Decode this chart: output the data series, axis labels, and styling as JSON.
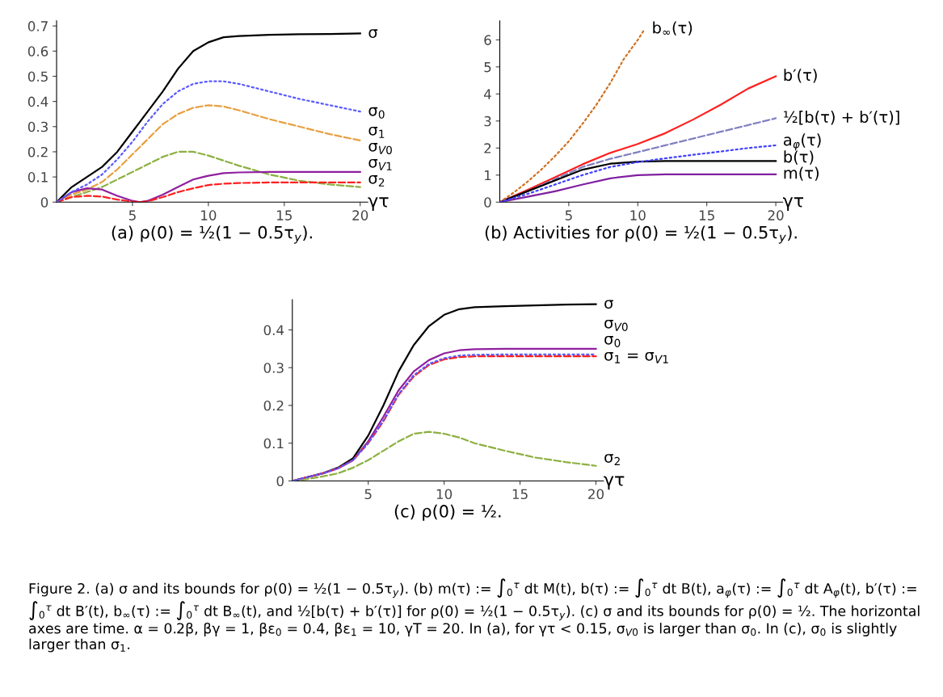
{
  "chart_data": [
    {
      "type": "line",
      "title": "(a) ρ(0) = ½(1 − 0.5τ$_{y}$).",
      "xlabel": "γτ",
      "x": [
        0,
        1,
        2,
        3,
        4,
        5,
        5.5,
        6,
        7,
        8,
        9,
        10,
        11,
        12,
        14,
        16,
        18,
        20
      ],
      "xlim": [
        0,
        20.5
      ],
      "ylim": [
        0,
        0.72
      ],
      "xticks": [
        5,
        10,
        15,
        20
      ],
      "yticks": [
        0,
        0.1,
        0.2,
        0.3,
        0.4,
        0.5,
        0.6,
        0.7
      ],
      "series": [
        {
          "name": "σ",
          "color": "#000000",
          "line_style": "solid",
          "values": [
            0,
            0.06,
            0.1,
            0.14,
            0.2,
            0.28,
            0.32,
            0.36,
            0.44,
            0.53,
            0.6,
            0.635,
            0.655,
            0.66,
            0.665,
            0.667,
            0.668,
            0.67
          ]
        },
        {
          "name": "σ$_{0}$",
          "color": "#5a5aff",
          "line_style": "dotted",
          "values": [
            0,
            0.04,
            0.07,
            0.11,
            0.17,
            0.24,
            0.28,
            0.32,
            0.39,
            0.44,
            0.47,
            0.48,
            0.48,
            0.47,
            0.44,
            0.41,
            0.385,
            0.36
          ]
        },
        {
          "name": "σ$_{1}$",
          "color": "#e8a040",
          "line_style": "dashed",
          "values": [
            0,
            0.03,
            0.05,
            0.08,
            0.13,
            0.19,
            0.22,
            0.25,
            0.31,
            0.35,
            0.375,
            0.385,
            0.38,
            0.365,
            0.33,
            0.3,
            0.27,
            0.245
          ]
        },
        {
          "name": "σ$_{2}$",
          "color": "#8cb040",
          "line_style": "dashed",
          "values": [
            0,
            0.02,
            0.04,
            0.06,
            0.09,
            0.12,
            0.135,
            0.15,
            0.18,
            0.2,
            0.2,
            0.185,
            0.165,
            0.145,
            0.11,
            0.085,
            0.07,
            0.06
          ]
        },
        {
          "name": "σ$_{V0}$",
          "color": "#9020a0",
          "line_style": "solid",
          "values": [
            0,
            0.04,
            0.055,
            0.05,
            0.025,
            0.005,
            0,
            0.005,
            0.03,
            0.06,
            0.09,
            0.105,
            0.115,
            0.118,
            0.12,
            0.12,
            0.12,
            0.12
          ]
        },
        {
          "name": "σ$_{V1}$",
          "color": "#ff2020",
          "line_style": "dashed",
          "values": [
            0,
            0.02,
            0.025,
            0.022,
            0.01,
            0.002,
            0,
            0.003,
            0.02,
            0.04,
            0.055,
            0.068,
            0.073,
            0.076,
            0.078,
            0.078,
            0.078,
            0.078
          ]
        }
      ]
    },
    {
      "type": "line",
      "title": "(b) Activities for ρ(0) = ½(1 − 0.5τ$_{y}$).",
      "xlabel": "γτ",
      "x": [
        0,
        2,
        4,
        6,
        8,
        10,
        12,
        14,
        16,
        18,
        20
      ],
      "xlim": [
        0,
        20.5
      ],
      "ylim": [
        0,
        6.7
      ],
      "xticks": [
        5,
        10,
        15,
        20
      ],
      "yticks": [
        0,
        1,
        2,
        3,
        4,
        5,
        6
      ],
      "series": [
        {
          "name": "b$_{∞}$(τ)",
          "color": "#d07020",
          "line_style": "dotted",
          "x": [
            0,
            1,
            2,
            3,
            4,
            5,
            6,
            7,
            8,
            9,
            10,
            10.5
          ],
          "values": [
            0,
            0.35,
            0.75,
            1.2,
            1.7,
            2.25,
            2.9,
            3.6,
            4.4,
            5.3,
            6.0,
            6.4
          ]
        },
        {
          "name": "b′(τ)",
          "color": "#ff2020",
          "line_style": "solid",
          "values": [
            0,
            0.45,
            0.92,
            1.4,
            1.82,
            2.15,
            2.55,
            3.05,
            3.6,
            4.2,
            4.65
          ]
        },
        {
          "name": "½[b(τ) + b′(τ)]",
          "color": "#8080c0",
          "line_style": "dashed",
          "values": [
            0,
            0.4,
            0.85,
            1.3,
            1.6,
            1.85,
            2.1,
            2.35,
            2.6,
            2.85,
            3.1
          ]
        },
        {
          "name": "a$_{φ}$(τ)",
          "color": "#4040ff",
          "line_style": "dotted",
          "values": [
            0,
            0.3,
            0.65,
            1.0,
            1.3,
            1.48,
            1.62,
            1.75,
            1.87,
            2.0,
            2.1
          ]
        },
        {
          "name": "b(τ)",
          "color": "#000000",
          "line_style": "solid",
          "values": [
            0,
            0.4,
            0.8,
            1.2,
            1.42,
            1.5,
            1.52,
            1.52,
            1.52,
            1.52,
            1.52
          ]
        },
        {
          "name": "m(τ)",
          "color": "#8020a0",
          "line_style": "solid",
          "values": [
            0,
            0.2,
            0.4,
            0.65,
            0.88,
            1.0,
            1.03,
            1.03,
            1.03,
            1.03,
            1.03
          ]
        }
      ]
    },
    {
      "type": "line",
      "title": "(c) ρ(0) = ½.",
      "xlabel": "γτ",
      "x": [
        0,
        1,
        2,
        3,
        4,
        5,
        6,
        7,
        8,
        9,
        10,
        11,
        12,
        14,
        16,
        18,
        20
      ],
      "xlim": [
        0,
        20.5
      ],
      "ylim": [
        0,
        0.48
      ],
      "xticks": [
        5,
        10,
        15,
        20
      ],
      "yticks": [
        0,
        0.1,
        0.2,
        0.3,
        0.4
      ],
      "series": [
        {
          "name": "σ",
          "color": "#000000",
          "line_style": "solid",
          "values": [
            0,
            0.01,
            0.02,
            0.035,
            0.06,
            0.12,
            0.2,
            0.29,
            0.36,
            0.41,
            0.44,
            0.455,
            0.46,
            0.463,
            0.465,
            0.467,
            0.468
          ]
        },
        {
          "name": "σ$_{V0}$",
          "color": "#9020a0",
          "line_style": "solid",
          "values": [
            0,
            0.01,
            0.02,
            0.033,
            0.055,
            0.105,
            0.17,
            0.24,
            0.29,
            0.32,
            0.338,
            0.346,
            0.349,
            0.35,
            0.35,
            0.35,
            0.35
          ]
        },
        {
          "name": "σ$_{0}$",
          "color": "#5a5aff",
          "line_style": "dotted",
          "values": [
            0,
            0.01,
            0.02,
            0.033,
            0.055,
            0.1,
            0.16,
            0.23,
            0.28,
            0.31,
            0.325,
            0.332,
            0.334,
            0.335,
            0.335,
            0.335,
            0.335
          ]
        },
        {
          "name": "σ$_{1}$ = σ$_{V1}$",
          "color": "#ff2020",
          "line_style": "dashed",
          "values": [
            0,
            0.01,
            0.02,
            0.033,
            0.055,
            0.1,
            0.158,
            0.228,
            0.277,
            0.307,
            0.322,
            0.328,
            0.33,
            0.33,
            0.33,
            0.33,
            0.33
          ]
        },
        {
          "name": "σ$_{2}$",
          "color": "#8cb040",
          "line_style": "dashed",
          "values": [
            0,
            0.005,
            0.012,
            0.02,
            0.035,
            0.055,
            0.08,
            0.105,
            0.125,
            0.13,
            0.125,
            0.115,
            0.1,
            0.08,
            0.062,
            0.05,
            0.04
          ]
        }
      ],
      "annotations": [
        "Figure 2. (a) σ and its bounds for ρ(0) = ½(1 − 0.5τ$_{y}$). (b) m(τ) := ∫$_{0}$$^{τ}$ dt M(t), b(τ) := ∫$_{0}$$^{τ}$ dt B(t), a$_{φ}$(τ) := ∫$_{0}$$^{τ}$ dt A$_{φ}$(t), b′(τ) := ∫$_{0}$$^{τ}$ dt B′(t), b$_{∞}$(τ) := ∫$_{0}$$^{τ}$ dt B$_{∞}$(t), and ½[b(τ) + b′(τ)] for ρ(0) = ½(1 − 0.5τ$_{y}$). (c) σ and its bounds for ρ(0) = ½. The horizontal axes are time. α = 0.2β, βγ = 1, βε$_{0}$ = 0.4, βε$_{1}$ = 10, γT = 20. In (a), for γτ < 0.15, σ$_{V0}$ is larger than σ$_{0}$. In (c), σ$_{0}$ is slightly larger than σ$_{1}$."
      ]
    }
  ]
}
